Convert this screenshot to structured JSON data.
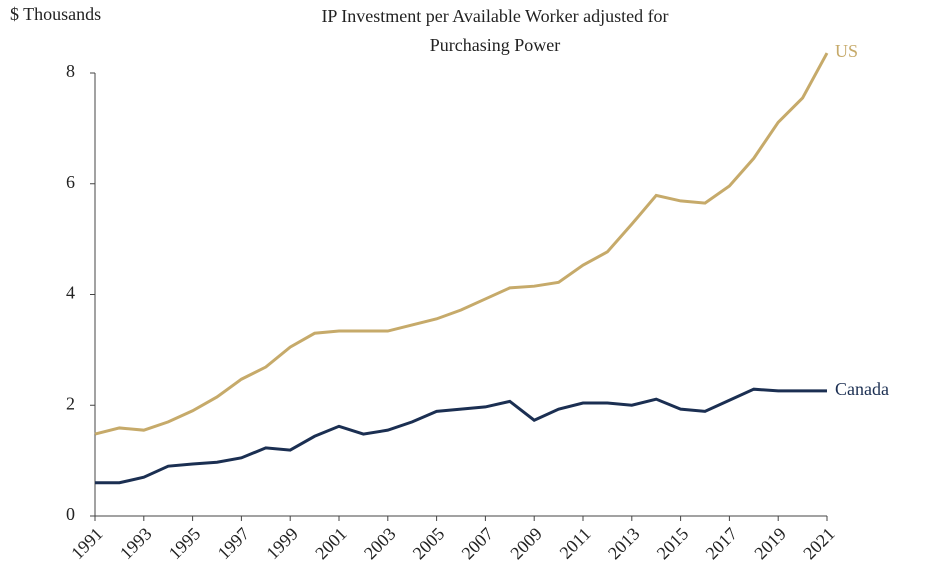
{
  "chart_data": {
    "type": "line",
    "title": [
      "IP Investment per Available Worker adjusted for",
      "Purchasing Power"
    ],
    "y_label": "$ Thousands",
    "x": [
      1991,
      1992,
      1993,
      1994,
      1995,
      1996,
      1997,
      1998,
      1999,
      2000,
      2001,
      2002,
      2003,
      2004,
      2005,
      2006,
      2007,
      2008,
      2009,
      2010,
      2011,
      2012,
      2013,
      2014,
      2015,
      2016,
      2017,
      2018,
      2019,
      2020,
      2021
    ],
    "series": [
      {
        "name": "US",
        "color": "#c6aa6a",
        "values": [
          1.48,
          1.59,
          1.55,
          1.7,
          1.9,
          2.15,
          2.47,
          2.69,
          3.05,
          3.3,
          3.34,
          3.34,
          3.34,
          3.45,
          3.56,
          3.72,
          3.92,
          4.12,
          4.15,
          4.22,
          4.53,
          4.77,
          5.27,
          5.79,
          5.69,
          5.65,
          5.96,
          6.46,
          7.11,
          7.55,
          8.36
        ]
      },
      {
        "name": "Canada",
        "color": "#1b2f52",
        "values": [
          0.6,
          0.6,
          0.7,
          0.9,
          0.94,
          0.97,
          1.05,
          1.23,
          1.19,
          1.44,
          1.62,
          1.48,
          1.55,
          1.7,
          1.89,
          1.93,
          1.97,
          2.07,
          1.73,
          1.93,
          2.04,
          2.04,
          2.0,
          2.11,
          1.93,
          1.89,
          2.09,
          2.29,
          2.26,
          2.26,
          2.26
        ]
      }
    ],
    "xlim": [
      1991,
      2021
    ],
    "xticks": [
      1991,
      1993,
      1995,
      1997,
      1999,
      2001,
      2003,
      2005,
      2007,
      2009,
      2011,
      2013,
      2015,
      2017,
      2019,
      2021
    ],
    "ylim": [
      0,
      8
    ],
    "yticks": [
      0,
      2,
      4,
      6,
      8
    ],
    "grid": false
  }
}
